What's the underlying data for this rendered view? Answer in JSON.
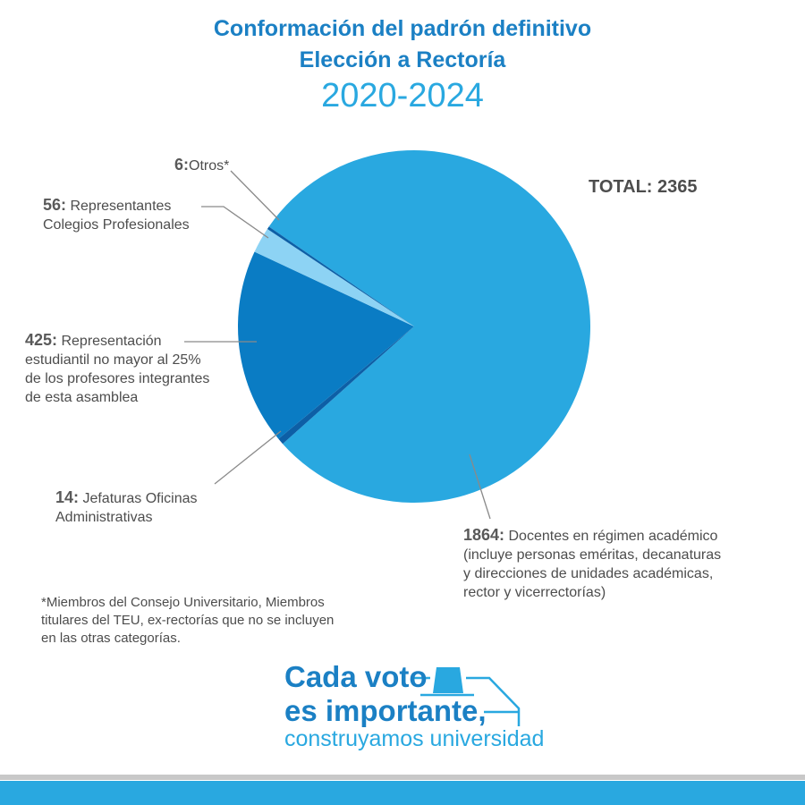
{
  "header": {
    "title_line1": "Conformación del padrón definitivo",
    "title_line2": "Elección a Rectoría",
    "period": "2020-2024"
  },
  "total_label": "TOTAL: 2365",
  "chart_data": {
    "type": "pie",
    "title": "Conformación del padrón definitivo Elección a Rectoría 2020-2024",
    "total": 2365,
    "slices": [
      {
        "value": 1864,
        "label": "Docentes en régimen académico (incluye personas eméritas, decanaturas y direcciones de unidades académicas, rector y vicerrectorías)",
        "color": "#29a8e0"
      },
      {
        "value": 14,
        "label": "Jefaturas Oficinas Administrativas",
        "color": "#0d5fa6"
      },
      {
        "value": 425,
        "label": "Representación estudiantil no mayor al 25% de los profesores integrantes de esta asamblea",
        "color": "#0a7cc4"
      },
      {
        "value": 56,
        "label": "Representantes Colegios Profesionales",
        "color": "#8dd3f4"
      },
      {
        "value": 6,
        "label": "Otros*",
        "color": "#0d5fa6"
      }
    ]
  },
  "labels": {
    "otros": {
      "num": "6:",
      "text": "Otros*"
    },
    "colegios": {
      "num": "56:",
      "line1": " Representantes",
      "line2": "Colegios Profesionales"
    },
    "estudiantil": {
      "num": "425:",
      "line1": " Representación",
      "line2": "estudiantil no mayor al 25%",
      "line3": "de los profesores integrantes",
      "line4": "de esta asamblea"
    },
    "jefaturas": {
      "num": "14:",
      "line1": " Jefaturas Oficinas",
      "line2": "Administrativas"
    },
    "docentes": {
      "num": "1864:",
      "line1": " Docentes en régimen académico",
      "line2": "(incluye personas eméritas, decanaturas",
      "line3": "y direcciones de unidades académicas,",
      "line4": "rector y vicerrectorías)"
    }
  },
  "footnote": {
    "line1": "*Miembros del Consejo Universitario, Miembros",
    "line2": "titulares del TEU, ex-rectorías que no se incluyen",
    "line3": "en las otras categorías."
  },
  "slogan": {
    "line1": "Cada voto",
    "line2": "es importante,",
    "line3": "construyamos universidad"
  },
  "colors": {
    "primary": "#1b80c4",
    "accent": "#29a8e0",
    "light": "#8dd3f4",
    "dark": "#0d5fa6"
  }
}
